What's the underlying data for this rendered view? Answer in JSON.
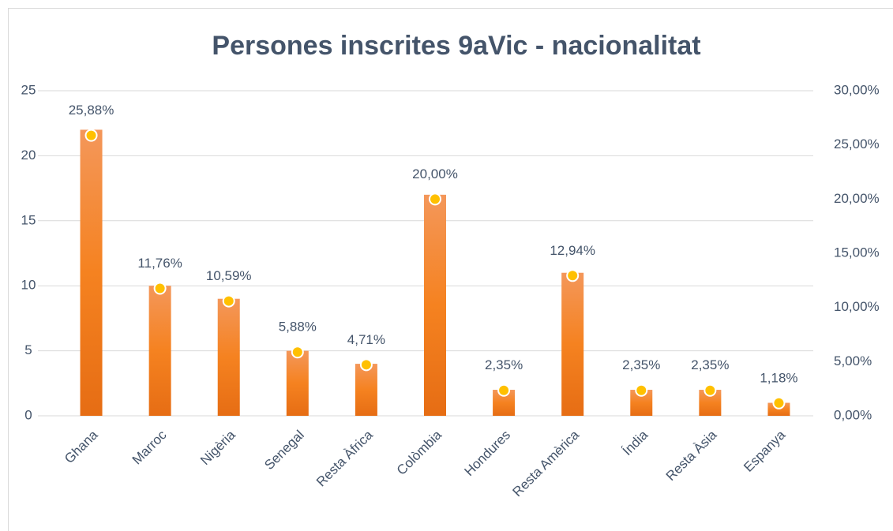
{
  "chart_data": {
    "type": "bar",
    "title": "Persones inscrites 9aVic - nacionalitat",
    "categories": [
      "Ghana",
      "Marroc",
      "Nigèria",
      "Senegal",
      "Resta Àfrica",
      "Colòmbia",
      "Hondures",
      "Resta Amèrica",
      "Índia",
      "Resta Àsia",
      "Espanya"
    ],
    "series": [
      {
        "type": "bar",
        "color": "#f07c26",
        "values": [
          22,
          10,
          9,
          5,
          4,
          17,
          2,
          11,
          2,
          2,
          1
        ]
      },
      {
        "type": "scatter",
        "axis": "y2",
        "color": "#ffc000",
        "values": [
          25.88,
          11.76,
          10.59,
          5.88,
          4.71,
          20.0,
          2.35,
          12.94,
          2.35,
          2.35,
          1.18
        ],
        "value_labels": [
          "25,88%",
          "11,76%",
          "10,59%",
          "5,88%",
          "4,71%",
          "20,00%",
          "2,35%",
          "12,94%",
          "2,35%",
          "2,35%",
          "1,18%"
        ]
      }
    ],
    "ylim": [
      0,
      25
    ],
    "yticks": [
      0,
      5,
      10,
      15,
      20,
      25
    ],
    "y2lim": [
      0,
      30
    ],
    "y2ticks": [
      {
        "value": 0,
        "label": "0,00%"
      },
      {
        "value": 5,
        "label": "5,00%"
      },
      {
        "value": 10,
        "label": "10,00%"
      },
      {
        "value": 15,
        "label": "15,00%"
      },
      {
        "value": 20,
        "label": "20,00%"
      },
      {
        "value": 25,
        "label": "25,00%"
      },
      {
        "value": 30,
        "label": "30,00%"
      }
    ],
    "grid": true
  }
}
